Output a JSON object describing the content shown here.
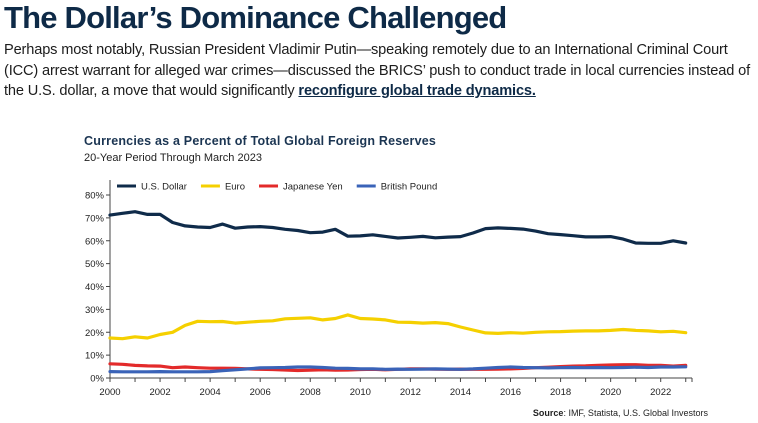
{
  "article": {
    "headline": "The Dollar’s Dominance Challenged",
    "paragraph_text": "Perhaps most notably, Russian President Vladimir Putin—speaking remotely due to an International Criminal Court (ICC) arrest warrant for alleged war crimes—discussed the BRICS’ push to conduct trade in local currencies instead of the U.S. dollar, a move that would significantly ",
    "link_text": "reconfigure global trade dynamics."
  },
  "source": {
    "label": "Source",
    "text": ": IMF, Statista, U.S. Global Investors"
  },
  "chart_data": {
    "type": "line",
    "title": "Currencies as a Percent of Total Global Foreign Reserves",
    "subtitle": "20-Year Period Through March 2023",
    "xlabel": "",
    "ylabel": "",
    "xlim": [
      2000,
      2023.25
    ],
    "ylim": [
      0,
      80
    ],
    "x_ticks": [
      "2000",
      "2002",
      "2004",
      "2006",
      "2008",
      "2010",
      "2012",
      "2014",
      "2016",
      "2018",
      "2020",
      "2022"
    ],
    "x_tick_values": [
      2000,
      2002,
      2004,
      2006,
      2008,
      2010,
      2012,
      2014,
      2016,
      2018,
      2020,
      2022
    ],
    "y_ticks": [
      "0%",
      "10%",
      "20%",
      "30%",
      "40%",
      "50%",
      "60%",
      "70%",
      "80%"
    ],
    "y_tick_values": [
      0,
      10,
      20,
      30,
      40,
      50,
      60,
      70,
      80
    ],
    "grid": false,
    "legend_position": "top-left",
    "x": [
      2000,
      2000.5,
      2001,
      2001.5,
      2002,
      2002.5,
      2003,
      2003.5,
      2004,
      2004.5,
      2005,
      2005.5,
      2006,
      2006.5,
      2007,
      2007.5,
      2008,
      2008.5,
      2009,
      2009.5,
      2010,
      2010.5,
      2011,
      2011.5,
      2012,
      2012.5,
      2013,
      2013.5,
      2014,
      2014.5,
      2015,
      2015.5,
      2016,
      2016.5,
      2017,
      2017.5,
      2018,
      2018.5,
      2019,
      2019.5,
      2020,
      2020.5,
      2021,
      2021.5,
      2022,
      2022.5,
      2023
    ],
    "series": [
      {
        "name": "U.S. Dollar",
        "color": "#0f2b4a",
        "values": [
          71.2,
          72.0,
          72.7,
          71.5,
          71.5,
          68.0,
          66.5,
          66.0,
          65.8,
          67.3,
          65.5,
          66.0,
          66.2,
          65.8,
          65.0,
          64.5,
          63.5,
          63.8,
          65.0,
          62.0,
          62.1,
          62.6,
          61.9,
          61.2,
          61.5,
          61.9,
          61.3,
          61.6,
          61.8,
          63.4,
          65.3,
          65.6,
          65.4,
          65.1,
          64.2,
          63.1,
          62.7,
          62.2,
          61.7,
          61.7,
          61.8,
          60.7,
          59.0,
          58.9,
          58.9,
          60.0,
          59.0
        ],
        "legend_label": "U.S. Dollar"
      },
      {
        "name": "Euro",
        "color": "#f5d000",
        "values": [
          17.5,
          17.2,
          18.0,
          17.5,
          19.0,
          20.0,
          23.0,
          24.8,
          24.6,
          24.7,
          24.0,
          24.4,
          24.8,
          25.0,
          25.9,
          26.1,
          26.3,
          25.4,
          26.0,
          27.6,
          26.0,
          25.8,
          25.4,
          24.4,
          24.3,
          24.0,
          24.2,
          23.8,
          22.3,
          21.0,
          19.7,
          19.5,
          19.8,
          19.6,
          20.0,
          20.2,
          20.3,
          20.5,
          20.6,
          20.6,
          20.8,
          21.2,
          20.8,
          20.6,
          20.2,
          20.4,
          19.8
        ],
        "legend_label": "Euro"
      },
      {
        "name": "Japanese Yen",
        "color": "#e32a2a",
        "values": [
          6.2,
          6.0,
          5.5,
          5.3,
          5.2,
          4.5,
          4.8,
          4.5,
          4.3,
          4.3,
          4.2,
          4.0,
          3.8,
          3.7,
          3.5,
          3.3,
          3.4,
          3.6,
          3.4,
          3.5,
          3.7,
          3.8,
          3.6,
          3.8,
          4.0,
          4.0,
          3.9,
          3.8,
          3.9,
          3.8,
          3.8,
          3.9,
          4.0,
          4.2,
          4.5,
          4.7,
          5.0,
          5.2,
          5.3,
          5.5,
          5.7,
          5.8,
          5.8,
          5.5,
          5.5,
          5.2,
          5.5
        ],
        "legend_label": "Japanese Yen"
      },
      {
        "name": "British Pound",
        "color": "#3a63b8",
        "values": [
          2.8,
          2.7,
          2.7,
          2.7,
          2.8,
          2.7,
          2.7,
          2.7,
          2.8,
          3.2,
          3.6,
          4.0,
          4.4,
          4.5,
          4.6,
          4.8,
          4.8,
          4.6,
          4.3,
          4.2,
          4.0,
          4.0,
          3.8,
          3.9,
          3.8,
          3.9,
          4.0,
          3.9,
          3.8,
          4.0,
          4.3,
          4.6,
          4.8,
          4.6,
          4.5,
          4.4,
          4.5,
          4.6,
          4.5,
          4.6,
          4.5,
          4.6,
          4.7,
          4.6,
          4.8,
          4.8,
          4.9
        ],
        "legend_label": "British Pound"
      }
    ]
  }
}
